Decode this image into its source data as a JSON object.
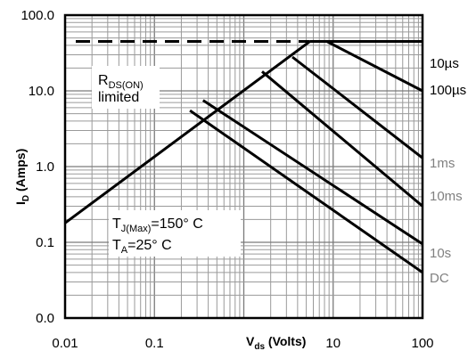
{
  "chart_data": {
    "type": "line",
    "xscale": "log",
    "yscale": "log",
    "xlim": [
      0.01,
      100
    ],
    "ylim": [
      0.01,
      100
    ],
    "grid": true,
    "xlabel": {
      "main": "V",
      "sub": "ds",
      "rest": " (Volts)"
    },
    "ylabel": {
      "main": "I",
      "sub": "D",
      "rest": " (Amps)"
    },
    "x_ticks": [
      {
        "value": 0.01,
        "label": "0.01"
      },
      {
        "value": 0.1,
        "label": "0.1"
      },
      {
        "value": 10,
        "label": "10"
      },
      {
        "value": 100,
        "label": "100"
      }
    ],
    "y_ticks": [
      {
        "value": 100,
        "label": "100.0"
      },
      {
        "value": 10,
        "label": "10.0"
      },
      {
        "value": 1,
        "label": "1.0"
      },
      {
        "value": 0.1,
        "label": "0.1"
      },
      {
        "value": 0.01,
        "label": "0.0"
      }
    ],
    "current_limit": {
      "x": [
        0.01,
        5.5
      ],
      "y": [
        45,
        45
      ]
    },
    "rds_on_limit": {
      "x": [
        0.01,
        5.5
      ],
      "y": [
        0.18,
        45
      ]
    },
    "series": [
      {
        "name": "10µs",
        "x": [
          5.5,
          100
        ],
        "y": [
          45,
          45
        ],
        "color": "#000000"
      },
      {
        "name": "100µs",
        "x": [
          8.5,
          100
        ],
        "y": [
          45,
          10
        ],
        "color": "#000000"
      },
      {
        "name": "1ms",
        "x": [
          3.5,
          100
        ],
        "y": [
          28,
          1.3
        ],
        "color": "#808080"
      },
      {
        "name": "10ms",
        "x": [
          1.6,
          100
        ],
        "y": [
          18,
          0.3
        ],
        "color": "#808080"
      },
      {
        "name": "10s",
        "x": [
          0.35,
          100
        ],
        "y": [
          7.5,
          0.095
        ],
        "color": "#808080"
      },
      {
        "name": "DC",
        "x": [
          0.25,
          100
        ],
        "y": [
          5.5,
          0.04
        ],
        "color": "#808080"
      }
    ],
    "annotations": {
      "rds": {
        "line1_main": "R",
        "line1_sub": "DS(ON)",
        "line2": "limited"
      },
      "tj": {
        "main": "T",
        "sub": "J(Max)",
        "rest": "=150° C"
      },
      "ta": {
        "main": "T",
        "sub": "A",
        "rest": "=25° C"
      }
    }
  }
}
